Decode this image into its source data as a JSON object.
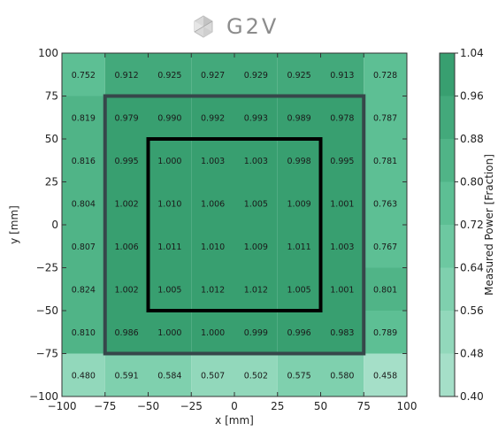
{
  "logo": {
    "text": "G2V"
  },
  "chart_data": {
    "type": "heatmap",
    "xlabel": "x [mm]",
    "ylabel": "y [mm]",
    "colorbar_label": "Measured Power [Fraction]",
    "xlim": [
      -100,
      100
    ],
    "ylim": [
      -100,
      100
    ],
    "x_ticks": [
      -100,
      -75,
      -50,
      -25,
      0,
      25,
      50,
      75,
      100
    ],
    "y_ticks": [
      -100,
      -75,
      -50,
      -25,
      0,
      25,
      50,
      75,
      100
    ],
    "x_tick_labels": [
      "−100",
      "−75",
      "−50",
      "−25",
      "0",
      "25",
      "50",
      "75",
      "100"
    ],
    "y_tick_labels": [
      "−100",
      "−75",
      "−50",
      "−25",
      "0",
      "25",
      "50",
      "75",
      "100"
    ],
    "x_edges": [
      -100,
      -75,
      -50,
      -25,
      0,
      25,
      50,
      75,
      100
    ],
    "y_edges": [
      100,
      75,
      50,
      25,
      0,
      -25,
      -50,
      -75,
      -100
    ],
    "values": [
      [
        0.752,
        0.912,
        0.925,
        0.927,
        0.929,
        0.925,
        0.913,
        0.728
      ],
      [
        0.819,
        0.979,
        0.99,
        0.992,
        0.993,
        0.989,
        0.978,
        0.787
      ],
      [
        0.816,
        0.995,
        1.0,
        1.003,
        1.003,
        0.998,
        0.995,
        0.781
      ],
      [
        0.804,
        1.002,
        1.01,
        1.006,
        1.005,
        1.009,
        1.001,
        0.763
      ],
      [
        0.807,
        1.006,
        1.011,
        1.01,
        1.009,
        1.011,
        1.003,
        0.767
      ],
      [
        0.824,
        1.002,
        1.005,
        1.012,
        1.012,
        1.005,
        1.001,
        0.801
      ],
      [
        0.81,
        0.986,
        1.0,
        1.0,
        0.999,
        0.996,
        0.983,
        0.789
      ],
      [
        0.48,
        0.591,
        0.584,
        0.507,
        0.502,
        0.575,
        0.58,
        0.458
      ]
    ],
    "value_labels": [
      [
        "0.752",
        "0.912",
        "0.925",
        "0.927",
        "0.929",
        "0.925",
        "0.913",
        "0.728"
      ],
      [
        "0.819",
        "0.979",
        "0.990",
        "0.992",
        "0.993",
        "0.989",
        "0.978",
        "0.787"
      ],
      [
        "0.816",
        "0.995",
        "1.000",
        "1.003",
        "1.003",
        "0.998",
        "0.995",
        "0.781"
      ],
      [
        "0.804",
        "1.002",
        "1.010",
        "1.006",
        "1.005",
        "1.009",
        "1.001",
        "0.763"
      ],
      [
        "0.807",
        "1.006",
        "1.011",
        "1.010",
        "1.009",
        "1.011",
        "1.003",
        "0.767"
      ],
      [
        "0.824",
        "1.002",
        "1.005",
        "1.012",
        "1.012",
        "1.005",
        "1.001",
        "0.801"
      ],
      [
        "0.810",
        "0.986",
        "1.000",
        "1.000",
        "0.999",
        "0.996",
        "0.983",
        "0.789"
      ],
      [
        "0.480",
        "0.591",
        "0.584",
        "0.507",
        "0.502",
        "0.575",
        "0.580",
        "0.458"
      ]
    ],
    "colorbar": {
      "min": 0.4,
      "max": 1.04,
      "levels": [
        0.4,
        0.48,
        0.56,
        0.64,
        0.72,
        0.8,
        0.88,
        0.96,
        1.04
      ],
      "tick_labels": [
        "0.40",
        "0.48",
        "0.56",
        "0.64",
        "0.72",
        "0.80",
        "0.88",
        "0.96",
        "1.04"
      ],
      "colors": [
        "#a5dfc8",
        "#92d8bb",
        "#7fd0ae",
        "#6dc8a1",
        "#5dbf94",
        "#50b487",
        "#43a97b",
        "#389f70"
      ]
    },
    "regions": [
      {
        "name": "outer-region",
        "x": [
          -75,
          75
        ],
        "y": [
          -75,
          75
        ],
        "color": "#36474a"
      },
      {
        "name": "inner-region",
        "x": [
          -50,
          50
        ],
        "y": [
          -50,
          50
        ],
        "color": "#000000"
      }
    ],
    "grid": false
  }
}
